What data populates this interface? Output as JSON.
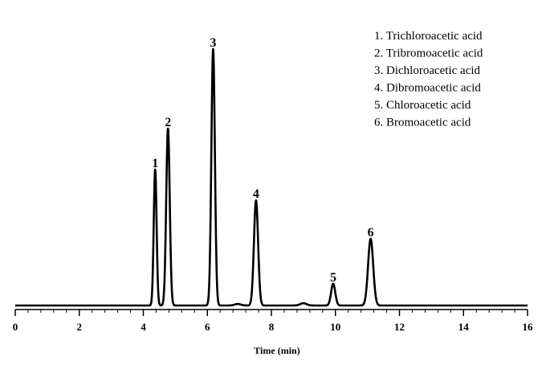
{
  "chart_data": {
    "type": "line",
    "title": "",
    "xlabel": "Time (min)",
    "ylabel": "",
    "xlim": [
      0,
      16
    ],
    "ylim": [
      0,
      100
    ],
    "xticks": [
      "0",
      "2",
      "4",
      "6",
      "8",
      "10",
      "12",
      "14",
      "16"
    ],
    "grid": false,
    "legend_position": "top-right",
    "legend": [
      "1. Trichloroacetic acid",
      "2. Tribromoacetic acid",
      "3. Dichloroacetic acid",
      "4. Dibromoacetic acid",
      "5. Chloroacetic acid",
      "6. Bromoacetic acid"
    ],
    "series": [
      {
        "color": "#000000",
        "peaks": [
          {
            "label": "1",
            "time": 4.37,
            "height": 53,
            "width": 0.045
          },
          {
            "label": "2",
            "time": 4.77,
            "height": 69,
            "width": 0.055
          },
          {
            "label": "3",
            "time": 6.18,
            "height": 100,
            "width": 0.055
          },
          {
            "label": "4",
            "time": 7.52,
            "height": 41,
            "width": 0.065
          },
          {
            "label": "5",
            "time": 9.93,
            "height": 8.5,
            "width": 0.065
          },
          {
            "label": "6",
            "time": 11.1,
            "height": 26,
            "width": 0.08
          }
        ],
        "minor_peaks": [
          {
            "time": 6.95,
            "height": 0.6,
            "width": 0.1
          },
          {
            "time": 9.0,
            "height": 0.9,
            "width": 0.1
          }
        ]
      }
    ]
  }
}
